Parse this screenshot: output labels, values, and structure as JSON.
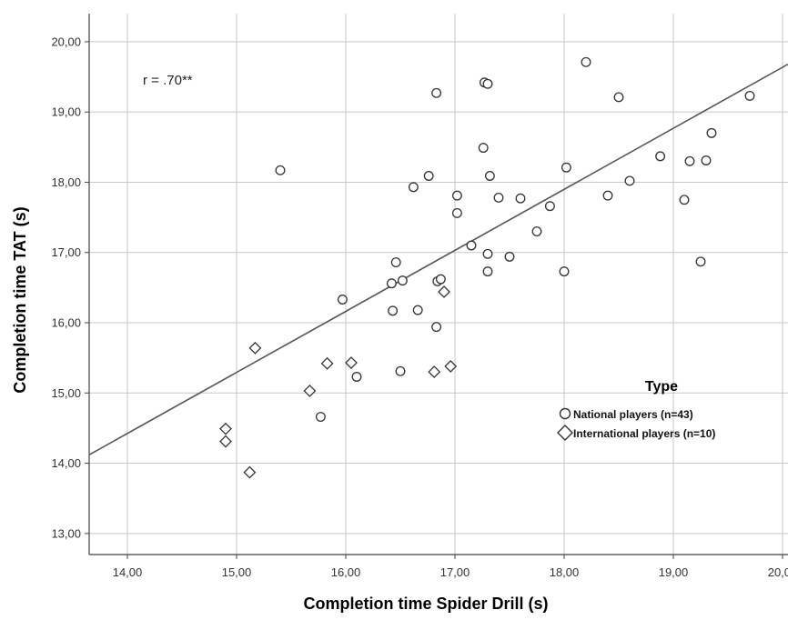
{
  "chart_data": {
    "type": "scatter",
    "xlabel": "Completion time Spider Drill (s)",
    "ylabel": "Completion time TAT (s)",
    "xlim": [
      13.65,
      20.05
    ],
    "ylim": [
      12.7,
      20.4
    ],
    "x_ticks": [
      14,
      15,
      16,
      17,
      18,
      19,
      20
    ],
    "y_ticks": [
      13,
      14,
      15,
      16,
      17,
      18,
      19,
      20
    ],
    "tick_format": "comma-2",
    "grid": true,
    "annotation": "r = .70**",
    "legend": {
      "title": "Type",
      "placement": "right",
      "entries": [
        "National players (n=43)",
        "International players (n=10)"
      ]
    },
    "fit_line": {
      "x": [
        13.65,
        20.05
      ],
      "y": [
        14.12,
        19.68
      ]
    },
    "series": [
      {
        "name": "National players (n=43)",
        "marker": "circle",
        "points": [
          [
            15.4,
            18.17
          ],
          [
            15.97,
            16.33
          ],
          [
            15.77,
            14.66
          ],
          [
            16.1,
            15.23
          ],
          [
            16.42,
            16.56
          ],
          [
            16.43,
            16.17
          ],
          [
            16.46,
            16.86
          ],
          [
            16.5,
            15.31
          ],
          [
            16.52,
            16.6
          ],
          [
            16.62,
            17.93
          ],
          [
            16.66,
            16.18
          ],
          [
            16.76,
            18.09
          ],
          [
            16.83,
            19.27
          ],
          [
            16.84,
            16.59
          ],
          [
            16.87,
            16.62
          ],
          [
            16.83,
            15.94
          ],
          [
            17.02,
            17.81
          ],
          [
            17.02,
            17.56
          ],
          [
            17.15,
            17.1
          ],
          [
            17.26,
            18.49
          ],
          [
            17.27,
            19.42
          ],
          [
            17.3,
            19.4
          ],
          [
            17.32,
            18.09
          ],
          [
            17.3,
            16.98
          ],
          [
            17.3,
            16.73
          ],
          [
            17.4,
            17.78
          ],
          [
            17.5,
            16.94
          ],
          [
            17.6,
            17.77
          ],
          [
            17.75,
            17.3
          ],
          [
            17.87,
            17.66
          ],
          [
            18.0,
            16.73
          ],
          [
            18.02,
            18.21
          ],
          [
            18.2,
            19.71
          ],
          [
            18.4,
            17.81
          ],
          [
            18.5,
            19.21
          ],
          [
            18.6,
            18.02
          ],
          [
            18.88,
            18.37
          ],
          [
            19.1,
            17.75
          ],
          [
            19.15,
            18.3
          ],
          [
            19.25,
            16.87
          ],
          [
            19.3,
            18.31
          ],
          [
            19.35,
            18.7
          ],
          [
            19.7,
            19.23
          ]
        ]
      },
      {
        "name": "International players (n=10)",
        "marker": "diamond",
        "points": [
          [
            14.9,
            14.49
          ],
          [
            14.9,
            14.31
          ],
          [
            15.12,
            13.87
          ],
          [
            15.17,
            15.64
          ],
          [
            15.67,
            15.03
          ],
          [
            15.83,
            15.42
          ],
          [
            16.05,
            15.43
          ],
          [
            16.81,
            15.3
          ],
          [
            16.9,
            16.44
          ],
          [
            16.96,
            15.38
          ]
        ]
      }
    ]
  },
  "colors": {
    "grid": "#c8c8c8",
    "axis": "#444444",
    "marker_stroke": "#333333",
    "fit_line": "#555555"
  }
}
